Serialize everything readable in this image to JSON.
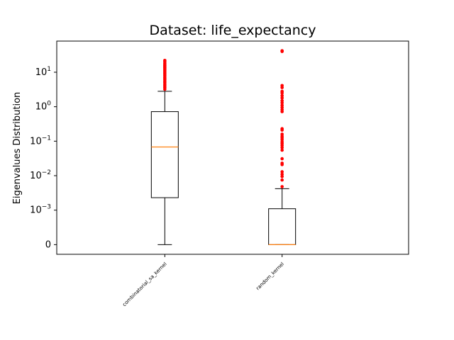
{
  "chart_data": {
    "type": "box",
    "title": "Dataset: life_expectancy",
    "xlabel": "",
    "ylabel": "Eigenvalues Distribution",
    "yscale": "symlog",
    "ylinthresh": 0.001,
    "ylim": [
      -0.00028,
      80
    ],
    "yticks": [
      {
        "value": 0,
        "base": "0",
        "exp": ""
      },
      {
        "value": 0.001,
        "base": "10",
        "exp": "−3"
      },
      {
        "value": 0.01,
        "base": "10",
        "exp": "−2"
      },
      {
        "value": 0.1,
        "base": "10",
        "exp": "−1"
      },
      {
        "value": 1,
        "base": "10",
        "exp": "0"
      },
      {
        "value": 10,
        "base": "10",
        "exp": "1"
      }
    ],
    "categories": [
      "combinatorial_sa_kernel",
      "random_kernel"
    ],
    "boxes": [
      {
        "name": "combinatorial_sa_kernel",
        "whisker_low": 0,
        "q1": 0.0023,
        "median": 0.068,
        "q3": 0.72,
        "whisker_high": 2.8,
        "fliers": [
          3.2,
          3.6,
          4.0,
          4.4,
          4.9,
          5.4,
          6.0,
          6.6,
          7.2,
          8.0,
          8.8,
          9.6,
          10.5,
          11.5,
          12.5,
          13.5,
          14.5,
          15.5,
          16.5,
          18.0,
          20.0,
          22.0
        ]
      },
      {
        "name": "random_kernel",
        "whisker_low": 0,
        "q1": 0,
        "median": 0,
        "q3": 0.0011,
        "whisker_high": 0.0042,
        "fliers": [
          0.0048,
          0.0075,
          0.0095,
          0.011,
          0.013,
          0.021,
          0.023,
          0.031,
          0.055,
          0.065,
          0.075,
          0.085,
          0.095,
          0.11,
          0.125,
          0.14,
          0.16,
          0.21,
          0.23,
          0.72,
          0.82,
          0.95,
          1.1,
          1.3,
          1.5,
          1.8,
          2.1,
          2.5,
          2.8,
          3.6,
          4.1,
          40.0,
          42.0
        ]
      }
    ],
    "colors": {
      "box": "#000000",
      "median": "#ff7f0e",
      "flier": "#ff0000"
    }
  }
}
